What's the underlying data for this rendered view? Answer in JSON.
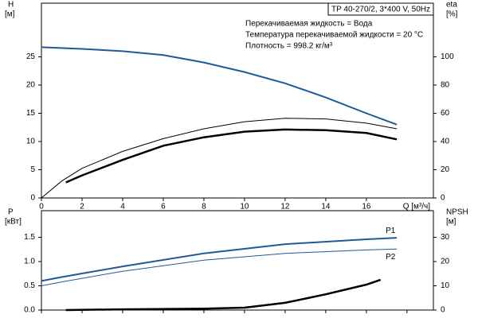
{
  "chart_data": [
    {
      "type": "line",
      "title": "TP 40-270/2, 3*400 V, 50Hz",
      "annotations": [
        "Перекачиваемая жидкость = Вода",
        "Температура перекачиваемой жидкости = 20 °C",
        "Плотность = 998.2 кг/м³"
      ],
      "ylabel": [
        "H",
        "[м]"
      ],
      "y2label": [
        "eta",
        "[%]"
      ],
      "xlabel": "Q [м³/ч]",
      "xlim": [
        0,
        19.3
      ],
      "xticks": [
        0,
        2,
        4,
        6,
        8,
        10,
        12,
        14,
        16
      ],
      "ylim": [
        0,
        34.5
      ],
      "yticks": [
        0,
        5,
        10,
        15,
        20,
        25
      ],
      "y2lim": [
        0,
        138
      ],
      "y2ticks": [
        0,
        20,
        40,
        60,
        80,
        100
      ],
      "series": [
        {
          "color": "#1f5a94",
          "line_width": 2,
          "x": [
            0,
            2,
            4,
            6,
            8,
            10,
            12,
            14,
            16,
            17.5
          ],
          "values": [
            26.7,
            26.4,
            26,
            25.3,
            24,
            22.3,
            20.3,
            17.8,
            15,
            13
          ]
        },
        {
          "color": "#000000",
          "line_width": 1,
          "axis": "y2",
          "x": [
            0,
            1,
            2,
            4,
            6,
            8,
            10,
            12,
            14,
            16,
            17.5
          ],
          "values": [
            0,
            12,
            21,
            33,
            42,
            49,
            54,
            56.5,
            56,
            53,
            49
          ]
        },
        {
          "color": "#000000",
          "line_width": 2.5,
          "axis": "y2",
          "x": [
            1.2,
            2,
            4,
            6,
            8,
            10,
            12,
            14,
            16,
            17.5
          ],
          "values": [
            11,
            16,
            27,
            37,
            43,
            47,
            48.5,
            48,
            46,
            41.5
          ]
        }
      ]
    },
    {
      "type": "line",
      "ylabel": [
        "P",
        "[кВт]"
      ],
      "y2label": [
        "NPSH",
        "[м]"
      ],
      "xlim": [
        0,
        19.3
      ],
      "xticks": [
        0,
        2,
        4,
        6,
        8,
        10,
        12,
        14,
        16,
        18
      ],
      "ylim": [
        0,
        2.05
      ],
      "yticks": [
        {
          "value": 0,
          "label": "0.0"
        },
        {
          "value": 0.5,
          "label": "0.5"
        },
        {
          "value": 1,
          "label": "1.0"
        },
        {
          "value": 1.5,
          "label": "1.5"
        }
      ],
      "y2lim": [
        0,
        41
      ],
      "y2ticks": [
        0,
        10,
        20,
        30
      ],
      "series": [
        {
          "name": "P1",
          "color": "#1f5a94",
          "line_width": 2,
          "x": [
            0,
            1,
            4,
            8,
            12,
            16,
            17.5
          ],
          "values": [
            0.6,
            0.68,
            0.9,
            1.17,
            1.36,
            1.46,
            1.49
          ]
        },
        {
          "name": "P2",
          "color": "#1f5a94",
          "line_width": 1,
          "x": [
            0,
            1,
            4,
            8,
            12,
            16,
            17.5
          ],
          "values": [
            0.5,
            0.58,
            0.8,
            1.03,
            1.17,
            1.24,
            1.26
          ]
        },
        {
          "color": "#000000",
          "line_width": 2.5,
          "axis": "y2",
          "x": [
            1.2,
            4,
            8,
            10,
            12,
            14,
            16,
            16.7
          ],
          "values": [
            0,
            0.3,
            0.6,
            1,
            3,
            6.5,
            10.5,
            12.5
          ]
        }
      ]
    }
  ]
}
